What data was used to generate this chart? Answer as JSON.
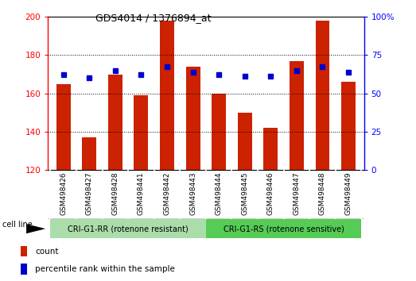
{
  "title": "GDS4014 / 1376894_at",
  "categories": [
    "GSM498426",
    "GSM498427",
    "GSM498428",
    "GSM498441",
    "GSM498442",
    "GSM498443",
    "GSM498444",
    "GSM498445",
    "GSM498446",
    "GSM498447",
    "GSM498448",
    "GSM498449"
  ],
  "bar_values": [
    165,
    137,
    170,
    159,
    198,
    174,
    160,
    150,
    142,
    177,
    198,
    166
  ],
  "percentile_values": [
    170,
    168,
    172,
    170,
    174,
    171,
    170,
    169,
    169,
    172,
    174,
    171
  ],
  "bar_color": "#cc2200",
  "dot_color": "#0000cc",
  "ymin": 120,
  "ymax": 200,
  "y2min": 0,
  "y2max": 100,
  "yticks_left": [
    120,
    140,
    160,
    180,
    200
  ],
  "yticks_right": [
    0,
    25,
    50,
    75,
    100
  ],
  "yticks_right_labels": [
    "0",
    "25",
    "50",
    "75",
    "100%"
  ],
  "group1_label": "CRI-G1-RR (rotenone resistant)",
  "group2_label": "CRI-G1-RS (rotenone sensitive)",
  "group1_color": "#aaddaa",
  "group2_color": "#55cc55",
  "cell_line_label": "cell line",
  "legend_bar_label": "count",
  "legend_dot_label": "percentile rank within the sample",
  "n_group1": 6,
  "n_group2": 6
}
